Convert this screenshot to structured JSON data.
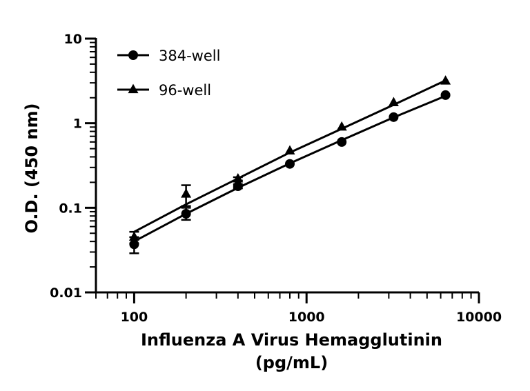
{
  "chart_data": {
    "type": "scatter",
    "x_scale": "log",
    "y_scale": "log",
    "xlim": [
      60,
      10000
    ],
    "ylim": [
      0.01,
      10
    ],
    "x_ticks": [
      {
        "value": 100,
        "label": "100"
      },
      {
        "value": 1000,
        "label": "1000"
      },
      {
        "value": 10000,
        "label": "10000"
      }
    ],
    "y_ticks": [
      {
        "value": 0.01,
        "label": "0.01"
      },
      {
        "value": 0.1,
        "label": "0.1"
      },
      {
        "value": 1,
        "label": "1"
      },
      {
        "value": 10,
        "label": "10"
      }
    ],
    "xlabel_lines": [
      "Influenza A Virus Hemagglutinin",
      "(pg/mL)"
    ],
    "ylabel": "O.D. (450 nm)",
    "legend_position": "top-left",
    "grid": false,
    "line_color": "#000000",
    "series": [
      {
        "name": "384-well",
        "marker": "circle",
        "x": [
          100,
          200,
          400,
          800,
          1600,
          3200,
          6400
        ],
        "y": [
          0.037,
          0.085,
          0.18,
          0.33,
          0.6,
          1.18,
          2.15
        ],
        "err_low": [
          0.029,
          0.072,
          0.17,
          0.32,
          0.59,
          1.16,
          2.12
        ],
        "err_high": [
          0.045,
          0.1,
          0.19,
          0.34,
          0.61,
          1.2,
          2.18
        ],
        "fit": [
          [
            100,
            0.04
          ],
          [
            200,
            0.085
          ],
          [
            400,
            0.172
          ],
          [
            800,
            0.335
          ],
          [
            1600,
            0.63
          ],
          [
            3200,
            1.17
          ],
          [
            6400,
            2.1
          ]
        ]
      },
      {
        "name": "96-well",
        "marker": "triangle",
        "x": [
          100,
          200,
          400,
          800,
          1600,
          3200,
          6400
        ],
        "y": [
          0.045,
          0.145,
          0.22,
          0.47,
          0.9,
          1.75,
          3.15
        ],
        "err_low": [
          0.038,
          0.105,
          0.21,
          0.46,
          0.89,
          1.73,
          3.12
        ],
        "err_high": [
          0.052,
          0.185,
          0.23,
          0.48,
          0.91,
          1.77,
          3.18
        ],
        "fit": [
          [
            100,
            0.052
          ],
          [
            200,
            0.11
          ],
          [
            400,
            0.222
          ],
          [
            800,
            0.45
          ],
          [
            1600,
            0.86
          ],
          [
            3200,
            1.65
          ],
          [
            6400,
            3.2
          ]
        ]
      }
    ]
  }
}
